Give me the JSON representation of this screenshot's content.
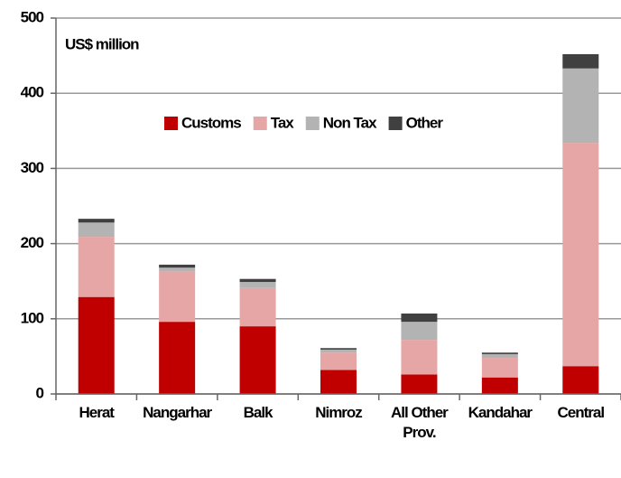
{
  "chart_data": {
    "type": "stacked_bar",
    "title": "US$ million",
    "categories": [
      "Herat",
      "Nangarhar",
      "Balk",
      "Nimroz",
      "All Other Prov.",
      "Kandahar",
      "Central"
    ],
    "series": [
      {
        "name": "Customs",
        "color": "#c00000",
        "values": [
          129,
          96,
          90,
          32,
          26,
          22,
          37
        ]
      },
      {
        "name": "Tax",
        "color": "#e6a6a6",
        "values": [
          80,
          67,
          51,
          23,
          46,
          26,
          297
        ]
      },
      {
        "name": "Non Tax",
        "color": "#b3b3b3",
        "values": [
          19,
          5,
          8,
          4,
          24,
          5,
          99
        ]
      },
      {
        "name": "Other",
        "color": "#404040",
        "values": [
          5,
          4,
          4,
          2,
          11,
          2,
          19
        ]
      }
    ],
    "ylim": [
      0,
      500
    ],
    "yticks": [
      0,
      100,
      200,
      300,
      400,
      500
    ],
    "grid": true
  }
}
